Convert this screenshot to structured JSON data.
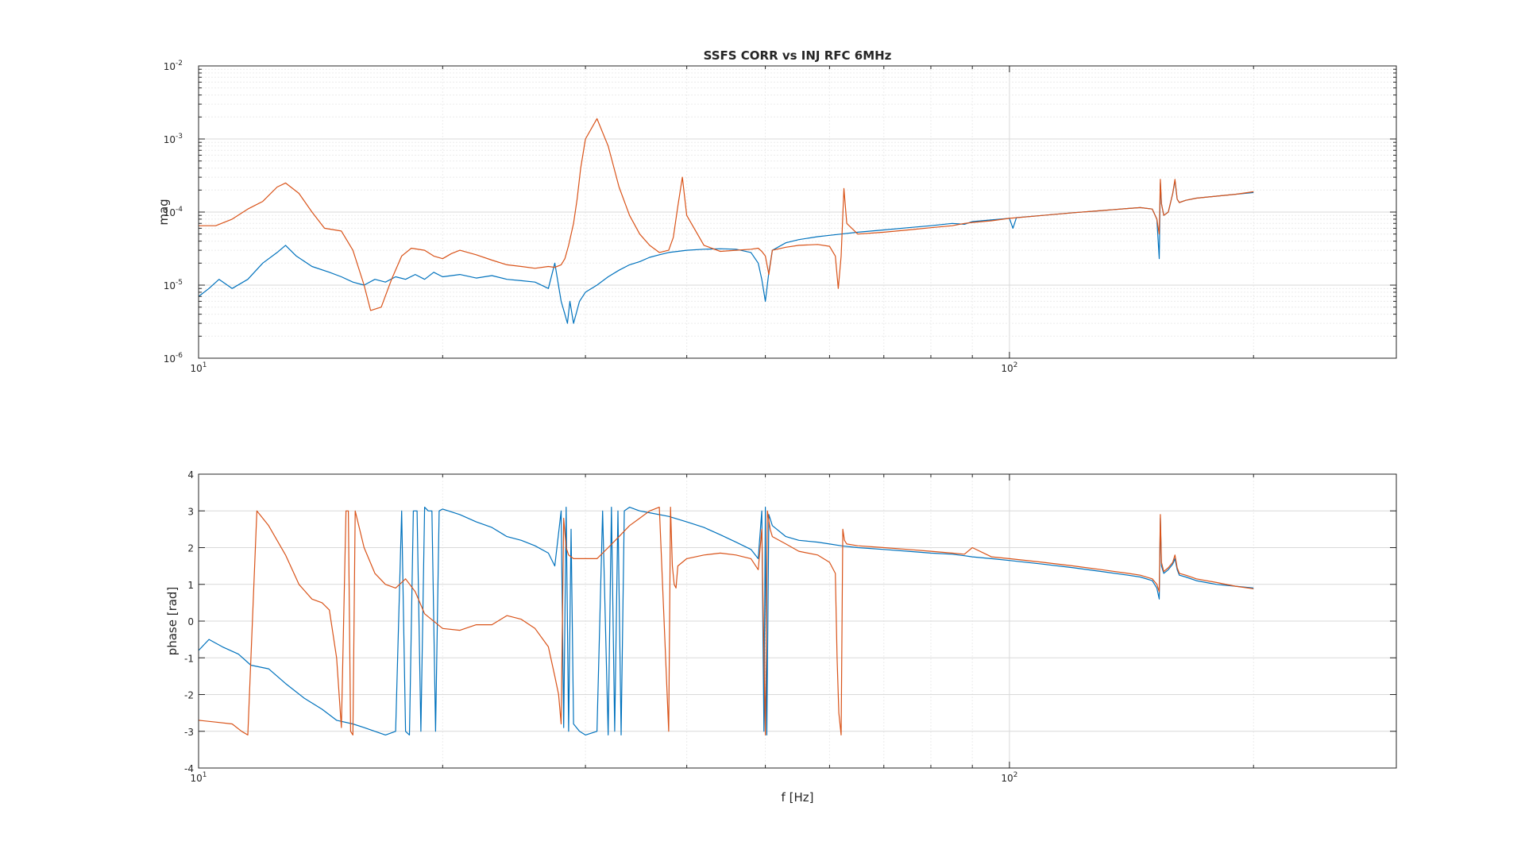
{
  "colors": {
    "series_blue": "#0072BD",
    "series_orange": "#D95319",
    "axes": "#262626",
    "grid": "#d9d9d9",
    "minor_grid": "#ececec",
    "background": "#ffffff"
  },
  "chart_data": [
    {
      "type": "line",
      "title": "SSFS CORR vs INJ RFC 6MHz",
      "xlabel": "",
      "ylabel": "mag",
      "xscale": "log",
      "yscale": "log",
      "xlim": [
        10,
        300
      ],
      "ylim": [
        1e-06,
        0.01
      ],
      "grid": true,
      "minor_grid": true,
      "x_tick_labels": [
        {
          "base": "10",
          "exp": "1"
        },
        {
          "base": "10",
          "exp": "2"
        }
      ],
      "y_tick_labels": [
        {
          "base": "10",
          "exp": "-6"
        },
        {
          "base": "10",
          "exp": "-5"
        },
        {
          "base": "10",
          "exp": "-4"
        },
        {
          "base": "10",
          "exp": "-3"
        },
        {
          "base": "10",
          "exp": "-2"
        }
      ],
      "series": [
        {
          "color": "#0072BD",
          "x": [
            10,
            10.3,
            10.6,
            11,
            11.5,
            12,
            12.5,
            12.8,
            13.2,
            13.8,
            14.5,
            15,
            15.5,
            16,
            16.5,
            17,
            17.5,
            18,
            18.5,
            19,
            19.5,
            20,
            21,
            22,
            23,
            24,
            25,
            26,
            27,
            27.5,
            28,
            28.3,
            28.5,
            28.7,
            29,
            29.5,
            30,
            31,
            32,
            33,
            34,
            35,
            36,
            37,
            38,
            39,
            40,
            42,
            44,
            46,
            48,
            49,
            49.5,
            50,
            50.5,
            51,
            53,
            55,
            58,
            60,
            62,
            65,
            70,
            75,
            80,
            85,
            88,
            90,
            95,
            100,
            101,
            102,
            110,
            120,
            130,
            140,
            145,
            150,
            152,
            153,
            153.5,
            154,
            155,
            157,
            159,
            160,
            161,
            162,
            165,
            170,
            180,
            190,
            200
          ],
          "y": [
            7e-06,
            9e-06,
            1.2e-05,
            9e-06,
            1.2e-05,
            2e-05,
            2.8e-05,
            3.5e-05,
            2.5e-05,
            1.8e-05,
            1.5e-05,
            1.3e-05,
            1.1e-05,
            1e-05,
            1.2e-05,
            1.1e-05,
            1.3e-05,
            1.2e-05,
            1.4e-05,
            1.2e-05,
            1.5e-05,
            1.3e-05,
            1.4e-05,
            1.25e-05,
            1.35e-05,
            1.2e-05,
            1.15e-05,
            1.1e-05,
            9e-06,
            2e-05,
            6e-06,
            4e-06,
            3e-06,
            6e-06,
            3e-06,
            6e-06,
            8e-06,
            1e-05,
            1.3e-05,
            1.6e-05,
            1.9e-05,
            2.1e-05,
            2.4e-05,
            2.6e-05,
            2.8e-05,
            2.9e-05,
            3e-05,
            3.1e-05,
            3.15e-05,
            3.1e-05,
            2.8e-05,
            2e-05,
            1.2e-05,
            6e-06,
            1.5e-05,
            3e-05,
            3.8e-05,
            4.2e-05,
            4.6e-05,
            4.8e-05,
            5e-05,
            5.3e-05,
            5.7e-05,
            6.1e-05,
            6.5e-05,
            7e-05,
            6.8e-05,
            7.4e-05,
            7.8e-05,
            8.2e-05,
            6e-05,
            8.4e-05,
            9e-05,
            9.8e-05,
            0.000105,
            0.000112,
            0.000115,
            0.00011,
            8e-05,
            2.3e-05,
            0.00025,
            0.00013,
            9e-05,
            0.0001,
            0.00018,
            0.00027,
            0.00015,
            0.000135,
            0.000145,
            0.000155,
            0.000165,
            0.000175,
            0.000185
          ]
        },
        {
          "color": "#D95319",
          "x": [
            10,
            10.5,
            11,
            11.5,
            12,
            12.5,
            12.8,
            13.3,
            13.8,
            14.3,
            15,
            15.5,
            16,
            16.3,
            16.8,
            17.3,
            17.8,
            18.3,
            19,
            19.5,
            20,
            20.5,
            21,
            22,
            23,
            24,
            25,
            26,
            27,
            27.5,
            28,
            28.3,
            28.6,
            29,
            29.3,
            29.6,
            30,
            31,
            32,
            33,
            34,
            35,
            36,
            37,
            38,
            38.5,
            39,
            39.5,
            40,
            42,
            44,
            46,
            48,
            49,
            49.5,
            50,
            50.5,
            51,
            53,
            55,
            58,
            60,
            61,
            61.5,
            62,
            62.5,
            63,
            65,
            70,
            75,
            80,
            85,
            88,
            90,
            95,
            100,
            110,
            120,
            130,
            140,
            145,
            150,
            152,
            153,
            153.5,
            154,
            155,
            157,
            159,
            160,
            161,
            162,
            165,
            170,
            180,
            190,
            200
          ],
          "y": [
            6.5e-05,
            6.5e-05,
            8e-05,
            0.00011,
            0.00014,
            0.00022,
            0.00025,
            0.00018,
            0.0001,
            6e-05,
            5.5e-05,
            3e-05,
            1e-05,
            4.5e-06,
            5e-06,
            1.2e-05,
            2.5e-05,
            3.2e-05,
            3e-05,
            2.5e-05,
            2.3e-05,
            2.7e-05,
            3e-05,
            2.6e-05,
            2.2e-05,
            1.9e-05,
            1.8e-05,
            1.7e-05,
            1.8e-05,
            1.75e-05,
            1.9e-05,
            2.3e-05,
            3.5e-05,
            7e-05,
            0.00015,
            0.0004,
            0.001,
            0.0019,
            0.0008,
            0.00022,
            9e-05,
            5e-05,
            3.5e-05,
            2.8e-05,
            3e-05,
            4.5e-05,
            0.00012,
            0.0003,
            9e-05,
            3.5e-05,
            2.9e-05,
            3e-05,
            3.1e-05,
            3.2e-05,
            2.9e-05,
            2.5e-05,
            1.4e-05,
            3e-05,
            3.3e-05,
            3.5e-05,
            3.6e-05,
            3.4e-05,
            2.5e-05,
            9e-06,
            2.5e-05,
            0.00021,
            7e-05,
            5e-05,
            5.3e-05,
            5.7e-05,
            6.1e-05,
            6.5e-05,
            7e-05,
            7.2e-05,
            7.6e-05,
            8.2e-05,
            9e-05,
            9.8e-05,
            0.000105,
            0.000112,
            0.000115,
            0.00011,
            8e-05,
            5e-05,
            0.00028,
            0.00013,
            9e-05,
            0.0001,
            0.00018,
            0.00028,
            0.00015,
            0.000135,
            0.000145,
            0.000155,
            0.000165,
            0.000175,
            0.00019
          ]
        }
      ]
    },
    {
      "type": "line",
      "title": "",
      "xlabel": "f [Hz]",
      "ylabel": "phase [rad]",
      "xscale": "log",
      "yscale": "linear",
      "xlim": [
        10,
        300
      ],
      "ylim": [
        -4,
        4
      ],
      "grid": true,
      "minor_grid": false,
      "x_tick_labels": [
        {
          "base": "10",
          "exp": "1"
        },
        {
          "base": "10",
          "exp": "2"
        }
      ],
      "y_ticks": [
        -4,
        -3,
        -2,
        -1,
        0,
        1,
        2,
        3,
        4
      ],
      "series": [
        {
          "color": "#0072BD",
          "x": [
            10,
            10.3,
            10.7,
            11.2,
            11.6,
            12.2,
            12.8,
            13.5,
            14.2,
            14.8,
            15.5,
            16,
            16.5,
            17,
            17.5,
            17.8,
            18,
            18.2,
            18.4,
            18.6,
            18.8,
            19,
            19.2,
            19.4,
            19.6,
            19.8,
            20,
            21,
            22,
            23,
            24,
            25,
            26,
            27,
            27.5,
            28,
            28.2,
            28.4,
            28.6,
            28.8,
            29,
            29.5,
            30,
            31,
            31.5,
            32,
            32.3,
            32.6,
            32.9,
            33.2,
            33.5,
            34,
            35,
            36,
            38,
            40,
            42,
            44,
            46,
            48,
            49,
            49.5,
            49.8,
            50,
            50.2,
            50.5,
            51,
            53,
            55,
            58,
            60,
            62,
            65,
            70,
            75,
            80,
            85,
            88,
            90,
            95,
            100,
            110,
            120,
            130,
            140,
            145,
            150,
            152,
            153,
            153.5,
            154,
            155,
            157,
            159,
            160,
            161,
            162,
            165,
            170,
            180,
            190,
            200
          ],
          "y": [
            -0.8,
            -0.5,
            -0.7,
            -0.9,
            -1.2,
            -1.3,
            -1.7,
            -2.1,
            -2.4,
            -2.7,
            -2.8,
            -2.9,
            -3.0,
            -3.1,
            -3.0,
            3.0,
            -3.0,
            -3.1,
            3.0,
            3.0,
            -3.0,
            3.1,
            3.0,
            3.0,
            -3.0,
            3.0,
            3.05,
            2.9,
            2.7,
            2.55,
            2.3,
            2.2,
            2.05,
            1.85,
            1.5,
            3.0,
            -2.9,
            3.1,
            -3.0,
            2.5,
            -2.8,
            -3.0,
            -3.1,
            -3.0,
            3.0,
            -3.1,
            3.1,
            -3.0,
            3.0,
            -3.1,
            3.0,
            3.1,
            3.0,
            2.95,
            2.85,
            2.7,
            2.55,
            2.35,
            2.15,
            1.95,
            1.7,
            3.0,
            -3.0,
            3.1,
            -3.1,
            2.9,
            2.6,
            2.3,
            2.2,
            2.15,
            2.1,
            2.05,
            2.0,
            1.95,
            1.9,
            1.85,
            1.82,
            1.78,
            1.75,
            1.7,
            1.65,
            1.55,
            1.45,
            1.35,
            1.25,
            1.2,
            1.1,
            0.9,
            0.6,
            2.8,
            1.5,
            1.3,
            1.4,
            1.55,
            1.7,
            1.4,
            1.25,
            1.2,
            1.1,
            1.0,
            0.95,
            0.9
          ]
        },
        {
          "color": "#D95319",
          "x": [
            10,
            10.5,
            11,
            11.3,
            11.5,
            11.8,
            12.2,
            12.8,
            13.3,
            13.8,
            14.2,
            14.5,
            14.8,
            15,
            15.2,
            15.3,
            15.4,
            15.5,
            15.6,
            15.8,
            16,
            16.5,
            17,
            17.5,
            18,
            18.5,
            19,
            20,
            21,
            22,
            23,
            24,
            25,
            26,
            27,
            27.5,
            27.8,
            28,
            28.2,
            28.4,
            28.6,
            29,
            30,
            31,
            32,
            33,
            34,
            35,
            36,
            37,
            38,
            38.2,
            38.4,
            38.6,
            38.8,
            39,
            40,
            42,
            44,
            46,
            48,
            49,
            49.5,
            50,
            50.3,
            50.7,
            51,
            53,
            55,
            58,
            60,
            61,
            61.3,
            61.6,
            62,
            62.3,
            62.6,
            63,
            65,
            70,
            75,
            80,
            85,
            88,
            90,
            95,
            100,
            110,
            120,
            130,
            140,
            145,
            150,
            152,
            153,
            153.5,
            154,
            155,
            157,
            159,
            160,
            161,
            162,
            165,
            170,
            180,
            190,
            200
          ],
          "y": [
            -2.7,
            -2.75,
            -2.8,
            -3.0,
            -3.1,
            3.0,
            2.6,
            1.8,
            1.0,
            0.6,
            0.5,
            0.3,
            -1.0,
            -2.9,
            3.0,
            3.0,
            -3.0,
            -3.1,
            3.0,
            2.5,
            2.0,
            1.3,
            1.0,
            0.9,
            1.15,
            0.8,
            0.2,
            -0.2,
            -0.25,
            -0.1,
            -0.1,
            0.15,
            0.05,
            -0.2,
            -0.7,
            -1.5,
            -2.0,
            -2.8,
            2.8,
            2.0,
            1.8,
            1.7,
            1.7,
            1.7,
            2.0,
            2.3,
            2.6,
            2.8,
            3.0,
            3.1,
            -3.0,
            3.1,
            1.5,
            1.0,
            0.9,
            1.5,
            1.7,
            1.8,
            1.85,
            1.8,
            1.7,
            1.4,
            2.5,
            -3.1,
            3.0,
            2.5,
            2.3,
            2.1,
            1.9,
            1.8,
            1.6,
            1.3,
            -1.0,
            -2.5,
            -3.1,
            2.5,
            2.2,
            2.1,
            2.05,
            2.0,
            1.95,
            1.9,
            1.85,
            1.82,
            2.0,
            1.75,
            1.7,
            1.6,
            1.5,
            1.4,
            1.3,
            1.25,
            1.15,
            1.0,
            0.8,
            2.9,
            1.6,
            1.35,
            1.45,
            1.6,
            1.8,
            1.45,
            1.3,
            1.25,
            1.15,
            1.05,
            0.95,
            0.88
          ]
        }
      ]
    }
  ]
}
